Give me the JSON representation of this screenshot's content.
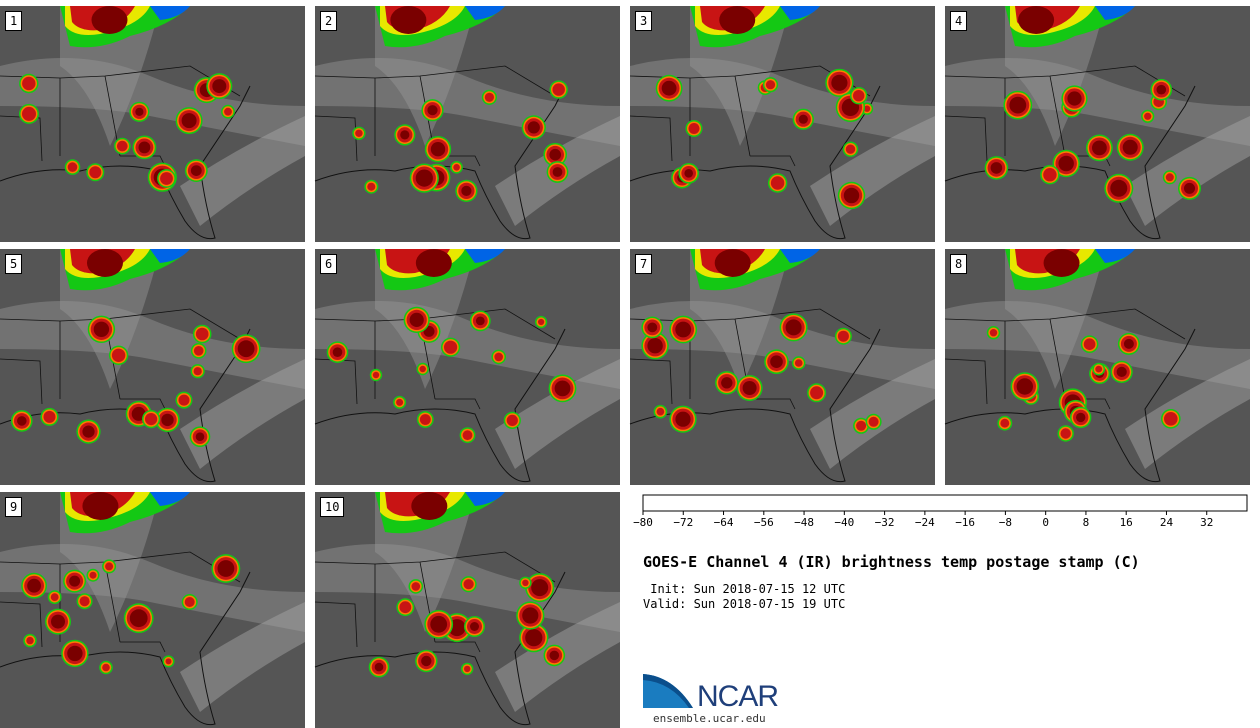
{
  "panels": [
    {
      "label": "1"
    },
    {
      "label": "2"
    },
    {
      "label": "3"
    },
    {
      "label": "4"
    },
    {
      "label": "5"
    },
    {
      "label": "6"
    },
    {
      "label": "7"
    },
    {
      "label": "8"
    },
    {
      "label": "9"
    },
    {
      "label": "10"
    }
  ],
  "colorbar": {
    "tick_labels": [
      "-80",
      "-72",
      "-64",
      "-56",
      "-48",
      "-40",
      "-32",
      "-24",
      "-16",
      "-8",
      "0",
      "8",
      "16",
      "24",
      "32"
    ],
    "colors": [
      "#c8c8c8",
      "#9a9a9a",
      "#2b2b2b",
      "#4a1414",
      "#7a0000",
      "#c81414",
      "#ff3c00",
      "#ff7800",
      "#d7a000",
      "#e8e800",
      "#14e614",
      "#00b400",
      "#008c1e",
      "#0028a0",
      "#0064e6",
      "#00dcf0",
      "#aaaaaa",
      "#a4a4a4",
      "#9c9c9c",
      "#949494",
      "#8a8a8a",
      "#808080",
      "#767676",
      "#6c6c6c",
      "#626262",
      "#585858",
      "#4e4e4e",
      "#444444",
      "#3a3a3a",
      "#303030"
    ]
  },
  "title": "GOES-E Channel 4 (IR) brightness temp postage stamp (C)",
  "init": " Init: Sun 2018-07-15 12 UTC",
  "valid": "Valid: Sun 2018-07-15 19 UTC",
  "logo_text": "NCAR",
  "logo_url": "ensemble.ucar.edu"
}
